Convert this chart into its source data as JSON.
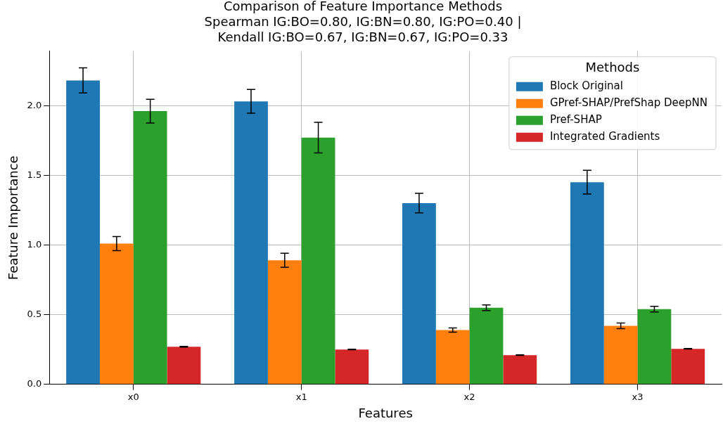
{
  "chart_data": {
    "type": "bar",
    "title": "Comparison of Feature Importance Methods",
    "subtitle": "Spearman IG:BO=0.80, IG:BN=0.80, IG:PO=0.40 |\nKendall IG:BO=0.67, IG:BN=0.67, IG:PO=0.33",
    "xlabel": "Features",
    "ylabel": "Feature Importance",
    "legend_title": "Methods",
    "categories": [
      "x0",
      "x1",
      "x2",
      "x3"
    ],
    "series": [
      {
        "name": "Block Original",
        "color": "#1f77b4",
        "values": [
          2.18,
          2.03,
          1.3,
          1.45
        ],
        "errors": [
          0.09,
          0.085,
          0.07,
          0.085
        ]
      },
      {
        "name": "GPref-SHAP/PrefShap DeepNN",
        "color": "#ff7f0e",
        "values": [
          1.01,
          0.89,
          0.39,
          0.42
        ],
        "errors": [
          0.05,
          0.05,
          0.015,
          0.02
        ]
      },
      {
        "name": "Pref-SHAP",
        "color": "#2ca02c",
        "values": [
          1.96,
          1.77,
          0.55,
          0.54
        ],
        "errors": [
          0.085,
          0.11,
          0.02,
          0.02
        ]
      },
      {
        "name": "Integrated Gradients",
        "color": "#d62728",
        "values": [
          0.27,
          0.25,
          0.21,
          0.255
        ],
        "errors": [
          0.002,
          0.002,
          0.002,
          0.002
        ]
      }
    ],
    "ylim": [
      0,
      2.39
    ],
    "yticks": [
      {
        "value": 0,
        "label": "0.0"
      },
      {
        "value": 0.5,
        "label": "0.5"
      },
      {
        "value": 1,
        "label": "1.0"
      },
      {
        "value": 1.5,
        "label": "1.5"
      },
      {
        "value": 2,
        "label": "2.0"
      }
    ],
    "grid": true,
    "legend": "top right"
  }
}
